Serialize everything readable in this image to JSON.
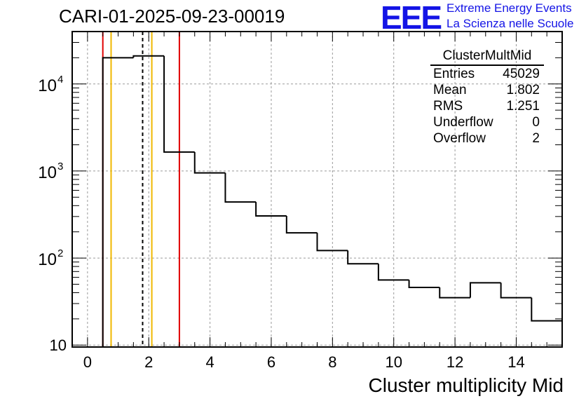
{
  "title": "CARI-01-2025-09-23-00019",
  "logo": {
    "mark": "EEE",
    "line1": "Extreme Energy Events",
    "line2": "La Scienza nelle Scuole",
    "color": "#1414e6"
  },
  "stats": {
    "name": "ClusterMultMid",
    "rows": [
      {
        "label": "Entries",
        "value": "45029"
      },
      {
        "label": "Mean",
        "value": "1.802"
      },
      {
        "label": "RMS",
        "value": "1.251"
      },
      {
        "label": "Underflow",
        "value": "0"
      },
      {
        "label": "Overflow",
        "value": "2"
      }
    ]
  },
  "chart_data": {
    "type": "histogram",
    "title": "CARI-01-2025-09-23-00019",
    "xlabel": "Cluster multiplicity Mid",
    "ylabel": "",
    "yscale": "log",
    "xlim": [
      -0.5,
      15.5
    ],
    "ylim": [
      9.5,
      40000
    ],
    "grid": true,
    "bin_edges": [
      0.5,
      1.5,
      2.5,
      3.5,
      4.5,
      5.5,
      6.5,
      7.5,
      8.5,
      9.5,
      10.5,
      11.5,
      12.5,
      13.5,
      14.5,
      15.5
    ],
    "counts": [
      20000,
      21000,
      1650,
      950,
      440,
      305,
      195,
      122,
      86,
      56,
      46,
      35,
      52,
      35,
      19
    ],
    "x_ticks": [
      0,
      2,
      4,
      6,
      8,
      10,
      12,
      14
    ],
    "x_tick_labels": [
      "0",
      "2",
      "4",
      "6",
      "8",
      "10",
      "12",
      "14"
    ],
    "y_ticks": [
      10,
      100,
      1000,
      10000
    ],
    "y_tick_labels": [
      {
        "base": "10",
        "exp": ""
      },
      {
        "base": "10",
        "exp": "2"
      },
      {
        "base": "10",
        "exp": "3"
      },
      {
        "base": "10",
        "exp": "4"
      }
    ],
    "vertical_lines": [
      {
        "x": 0.5,
        "color": "#e00000",
        "style": "solid"
      },
      {
        "x": 0.77,
        "color": "#f0b800",
        "style": "solid"
      },
      {
        "x": 1.8,
        "color": "#000000",
        "style": "dashed"
      },
      {
        "x": 2.1,
        "color": "#f0b800",
        "style": "solid"
      },
      {
        "x": 3.0,
        "color": "#e00000",
        "style": "solid"
      }
    ]
  }
}
